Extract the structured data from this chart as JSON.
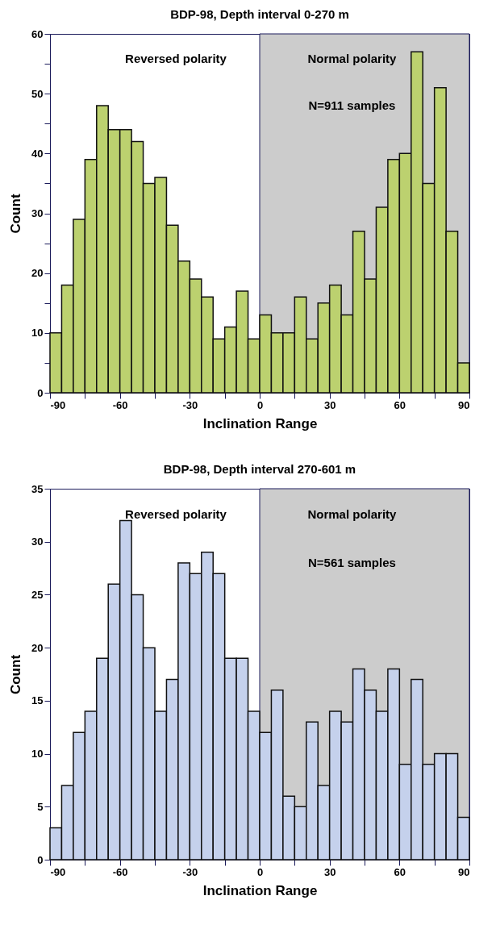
{
  "chart_data": [
    {
      "type": "histogram",
      "title": "BDP-98, Depth interval 0-270 m",
      "xlabel": "Inclination Range",
      "ylabel": "Count",
      "bins": [
        -90,
        -85,
        -80,
        -75,
        -70,
        -65,
        -60,
        -55,
        -50,
        -45,
        -40,
        -35,
        -30,
        -25,
        -20,
        -15,
        -10,
        -5,
        0,
        5,
        10,
        15,
        20,
        25,
        30,
        35,
        40,
        45,
        50,
        55,
        60,
        65,
        70,
        75,
        80,
        85,
        90
      ],
      "values": [
        10,
        18,
        29,
        39,
        48,
        44,
        44,
        42,
        35,
        36,
        28,
        22,
        19,
        16,
        9,
        11,
        17,
        9,
        13,
        10,
        10,
        16,
        9,
        15,
        18,
        13,
        27,
        19,
        31,
        39,
        40,
        57,
        35,
        51,
        27,
        5
      ],
      "color": "#bcd16f",
      "xlim": [
        -90,
        90
      ],
      "xticks": [
        -90,
        {
          "value": -75,
          "label": null
        },
        -60,
        {
          "value": -45,
          "label": null
        },
        -30,
        {
          "value": -15,
          "label": null
        },
        0,
        {
          "value": 15,
          "label": null
        },
        30,
        {
          "value": 45,
          "label": null
        },
        60,
        {
          "value": 75,
          "label": null
        },
        90
      ],
      "ylim": [
        0,
        60
      ],
      "yticks": [
        0,
        {
          "value": 5,
          "label": null
        },
        10,
        {
          "value": 15,
          "label": null
        },
        20,
        {
          "value": 25,
          "label": null
        },
        30,
        {
          "value": 35,
          "label": null
        },
        40,
        {
          "value": 45,
          "label": null
        },
        50,
        {
          "value": 55,
          "label": null
        },
        60
      ],
      "bands": [
        {
          "axis": "x",
          "from": 0,
          "to": 90,
          "color": "#cccccc"
        }
      ],
      "annotations": [
        "Reversed polarity",
        "Normal polarity",
        "N=911 samples"
      ]
    },
    {
      "type": "histogram",
      "title": "BDP-98, Depth interval 270-601 m",
      "xlabel": "Inclination Range",
      "ylabel": "Count",
      "bins": [
        -90,
        -85,
        -80,
        -75,
        -70,
        -65,
        -60,
        -55,
        -50,
        -45,
        -40,
        -35,
        -30,
        -25,
        -20,
        -15,
        -10,
        -5,
        0,
        5,
        10,
        15,
        20,
        25,
        30,
        35,
        40,
        45,
        50,
        55,
        60,
        65,
        70,
        75,
        80,
        85,
        90
      ],
      "values": [
        3,
        7,
        12,
        14,
        19,
        26,
        32,
        25,
        20,
        14,
        17,
        28,
        27,
        29,
        27,
        19,
        19,
        14,
        12,
        16,
        6,
        5,
        13,
        7,
        14,
        13,
        18,
        16,
        14,
        18,
        9,
        17,
        9,
        10,
        10,
        4
      ],
      "color": "#c5d1ec",
      "xlim": [
        -90,
        90
      ],
      "xticks": [
        -90,
        {
          "value": -75,
          "label": null
        },
        -60,
        {
          "value": -45,
          "label": null
        },
        -30,
        {
          "value": -15,
          "label": null
        },
        0,
        {
          "value": 15,
          "label": null
        },
        30,
        {
          "value": 45,
          "label": null
        },
        60,
        {
          "value": 75,
          "label": null
        },
        90
      ],
      "ylim": [
        0,
        35
      ],
      "yticks": [
        0,
        5,
        10,
        15,
        20,
        25,
        30,
        35
      ],
      "bands": [
        {
          "axis": "x",
          "from": 0,
          "to": 90,
          "color": "#cccccc"
        }
      ],
      "annotations": [
        "Reversed polarity",
        "Normal polarity",
        "N=561 samples"
      ]
    }
  ]
}
